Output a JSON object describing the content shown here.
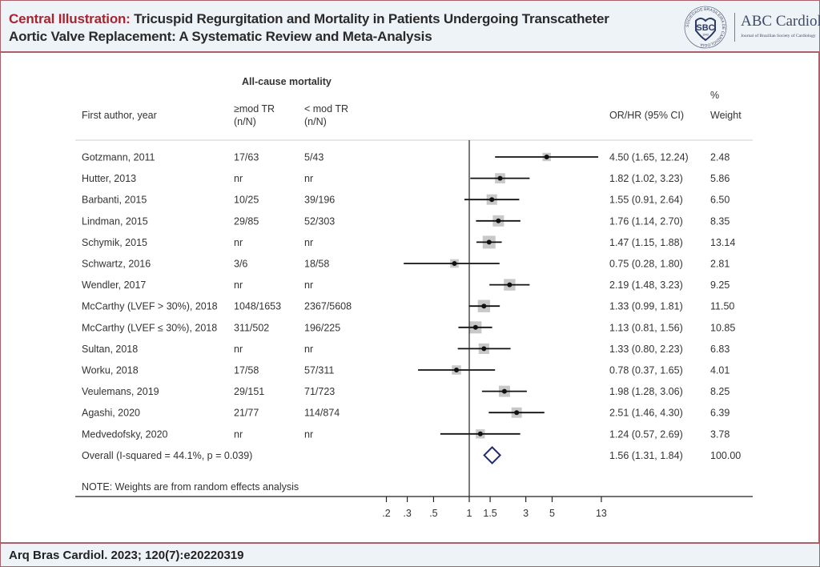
{
  "header": {
    "title_lead": "Central Illustration:",
    "title_rest": " Tricuspid Regurgitation and Mortality in Patients Undergoing Transcatheter Aortic Valve Replacement: A Systematic Review and Meta-Analysis",
    "logo": {
      "seal_text": "SBC",
      "seal_year": "1943",
      "seal_ring_text": "SOCIEDADE BRASILEIRA DE CARDIOLOGIA",
      "journal_name": "ABC Cardiol",
      "journal_subtitle": "Journal of Brazilian Society of Cardiology"
    }
  },
  "footer": {
    "citation": "Arq Bras Cardiol. 2023; 120(7):e20220319"
  },
  "colors": {
    "accent": "#a5262f",
    "border": "#a8616a",
    "band_bg": "#eef3f8",
    "diamond": "#1f2a7a",
    "weight_box": "#c8c8c8"
  },
  "chart_data": {
    "type": "forest",
    "title": "All-cause mortality",
    "columns": {
      "study": "First author, year",
      "exposed": [
        "≥mod TR",
        "(n/N)"
      ],
      "unexposed": [
        "< mod TR",
        "(n/N)"
      ],
      "effect": "OR/HR (95% CI)",
      "weight": [
        "%",
        "Weight"
      ]
    },
    "x_scale": "log",
    "null_value": 1,
    "xticks": [
      0.2,
      0.3,
      0.5,
      1,
      1.5,
      3,
      5,
      13
    ],
    "xtick_labels": [
      ".2",
      ".3",
      ".5",
      "1",
      "1.5",
      "3",
      "5",
      "13"
    ],
    "studies": [
      {
        "study": "Gotzmann, 2011",
        "exposed": "17/63",
        "unexposed": "5/43",
        "est": 4.5,
        "lo": 1.65,
        "hi": 12.24,
        "ci_text": "4.50 (1.65, 12.24)",
        "weight": "2.48"
      },
      {
        "study": "Hutter, 2013",
        "exposed": "nr",
        "unexposed": "nr",
        "est": 1.82,
        "lo": 1.02,
        "hi": 3.23,
        "ci_text": "1.82 (1.02, 3.23)",
        "weight": "5.86"
      },
      {
        "study": "Barbanti, 2015",
        "exposed": "10/25",
        "unexposed": "39/196",
        "est": 1.55,
        "lo": 0.91,
        "hi": 2.64,
        "ci_text": "1.55 (0.91, 2.64)",
        "weight": "6.50"
      },
      {
        "study": "Lindman, 2015",
        "exposed": "29/85",
        "unexposed": "52/303",
        "est": 1.76,
        "lo": 1.14,
        "hi": 2.7,
        "ci_text": "1.76 (1.14, 2.70)",
        "weight": "8.35"
      },
      {
        "study": "Schymik, 2015",
        "exposed": "nr",
        "unexposed": "nr",
        "est": 1.47,
        "lo": 1.15,
        "hi": 1.88,
        "ci_text": "1.47 (1.15, 1.88)",
        "weight": "13.14"
      },
      {
        "study": "Schwartz, 2016",
        "exposed": "3/6",
        "unexposed": "18/58",
        "est": 0.75,
        "lo": 0.28,
        "hi": 1.8,
        "ci_text": "0.75 (0.28, 1.80)",
        "weight": "2.81"
      },
      {
        "study": "Wendler, 2017",
        "exposed": "nr",
        "unexposed": "nr",
        "est": 2.19,
        "lo": 1.48,
        "hi": 3.23,
        "ci_text": "2.19 (1.48, 3.23)",
        "weight": "9.25"
      },
      {
        "study": "McCarthy (LVEF > 30%), 2018",
        "exposed": "1048/1653",
        "unexposed": "2367/5608",
        "est": 1.33,
        "lo": 0.99,
        "hi": 1.81,
        "ci_text": "1.33 (0.99, 1.81)",
        "weight": "11.50"
      },
      {
        "study": "McCarthy (LVEF ≤ 30%), 2018",
        "exposed": "311/502",
        "unexposed": "196/225",
        "est": 1.13,
        "lo": 0.81,
        "hi": 1.56,
        "ci_text": "1.13 (0.81, 1.56)",
        "weight": "10.85"
      },
      {
        "study": "Sultan, 2018",
        "exposed": "nr",
        "unexposed": "nr",
        "est": 1.33,
        "lo": 0.8,
        "hi": 2.23,
        "ci_text": "1.33 (0.80, 2.23)",
        "weight": "6.83"
      },
      {
        "study": "Worku, 2018",
        "exposed": "17/58",
        "unexposed": "57/311",
        "est": 0.78,
        "lo": 0.37,
        "hi": 1.65,
        "ci_text": "0.78 (0.37, 1.65)",
        "weight": "4.01"
      },
      {
        "study": "Veulemans, 2019",
        "exposed": "29/151",
        "unexposed": "71/723",
        "est": 1.98,
        "lo": 1.28,
        "hi": 3.06,
        "ci_text": "1.98 (1.28, 3.06)",
        "weight": "8.25"
      },
      {
        "study": "Agashi, 2020",
        "exposed": "21/77",
        "unexposed": "114/874",
        "est": 2.51,
        "lo": 1.46,
        "hi": 4.3,
        "ci_text": "2.51 (1.46, 4.30)",
        "weight": "6.39"
      },
      {
        "study": "Medvedofsky, 2020",
        "exposed": "nr",
        "unexposed": "nr",
        "est": 1.24,
        "lo": 0.57,
        "hi": 2.69,
        "ci_text": "1.24 (0.57, 2.69)",
        "weight": "3.78"
      }
    ],
    "overall": {
      "label": "Overall  (I-squared = 44.1%, p = 0.039)",
      "est": 1.56,
      "lo": 1.31,
      "hi": 1.84,
      "ci_text": "1.56 (1.31, 1.84)",
      "weight": "100.00"
    },
    "note": "NOTE: Weights are from random effects analysis"
  }
}
